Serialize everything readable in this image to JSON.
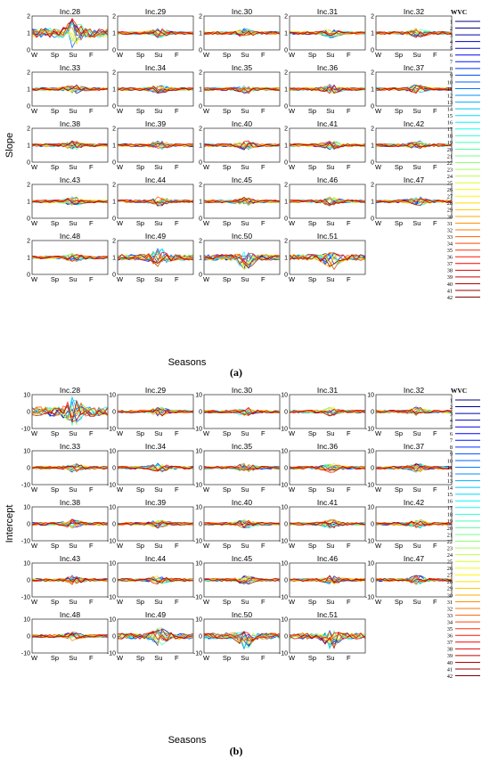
{
  "panels": [
    {
      "label": "(a)",
      "chart_data": {
        "type": "line",
        "ylabel": "Slope",
        "xlabel": "Seasons",
        "ylim": [
          0,
          2
        ],
        "yticks": [
          "0",
          "1",
          "2"
        ],
        "xticks": [
          "W",
          "Sp",
          "Su",
          "F"
        ],
        "subplots": [
          {
            "title": "Inc.28"
          },
          {
            "title": "Inc.29"
          },
          {
            "title": "Inc.30"
          },
          {
            "title": "Inc.31"
          },
          {
            "title": "Inc.32"
          },
          {
            "title": "Inc.33"
          },
          {
            "title": "Inc.34"
          },
          {
            "title": "Inc.35"
          },
          {
            "title": "Inc.36"
          },
          {
            "title": "Inc.37"
          },
          {
            "title": "Inc.38"
          },
          {
            "title": "Inc.39"
          },
          {
            "title": "Inc.40"
          },
          {
            "title": "Inc.41"
          },
          {
            "title": "Inc.42"
          },
          {
            "title": "Inc.43"
          },
          {
            "title": "Inc.44"
          },
          {
            "title": "Inc.45"
          },
          {
            "title": "Inc.46"
          },
          {
            "title": "Inc.47"
          },
          {
            "title": "Inc.48"
          },
          {
            "title": "Inc.49"
          },
          {
            "title": "Inc.50"
          },
          {
            "title": "Inc.51"
          }
        ],
        "baseline": 1,
        "legend": {
          "title": "WVC",
          "entries": [
            "1",
            "2",
            "3",
            "4",
            "5",
            "6",
            "7",
            "8",
            "9",
            "10",
            "11",
            "12",
            "13",
            "14",
            "15",
            "16",
            "17",
            "18",
            "19",
            "20",
            "21",
            "22",
            "23",
            "24",
            "25",
            "26",
            "27",
            "28",
            "29",
            "30",
            "31",
            "32",
            "33",
            "34",
            "35",
            "36",
            "37",
            "38",
            "39",
            "40",
            "41",
            "42"
          ]
        }
      }
    },
    {
      "label": "(b)",
      "chart_data": {
        "type": "line",
        "ylabel": "Intercept",
        "xlabel": "Seasons",
        "ylim": [
          -10,
          10
        ],
        "yticks": [
          "-10",
          "0",
          "10"
        ],
        "xticks": [
          "W",
          "Sp",
          "Su",
          "F"
        ],
        "subplots": [
          {
            "title": "Inc.28"
          },
          {
            "title": "Inc.29"
          },
          {
            "title": "Inc.30"
          },
          {
            "title": "Inc.31"
          },
          {
            "title": "Inc.32"
          },
          {
            "title": "Inc.33"
          },
          {
            "title": "Inc.34"
          },
          {
            "title": "Inc.35"
          },
          {
            "title": "Inc.36"
          },
          {
            "title": "Inc.37"
          },
          {
            "title": "Inc.38"
          },
          {
            "title": "Inc.39"
          },
          {
            "title": "Inc.40"
          },
          {
            "title": "Inc.41"
          },
          {
            "title": "Inc.42"
          },
          {
            "title": "Inc.43"
          },
          {
            "title": "Inc.44"
          },
          {
            "title": "Inc.45"
          },
          {
            "title": "Inc.46"
          },
          {
            "title": "Inc.47"
          },
          {
            "title": "Inc.48"
          },
          {
            "title": "Inc.49"
          },
          {
            "title": "Inc.50"
          },
          {
            "title": "Inc.51"
          }
        ],
        "baseline": 0,
        "legend": {
          "title": "WVC",
          "entries": [
            "1",
            "2",
            "3",
            "4",
            "5",
            "6",
            "7",
            "8",
            "9",
            "10",
            "11",
            "12",
            "13",
            "14",
            "15",
            "16",
            "17",
            "18",
            "19",
            "20",
            "21",
            "22",
            "23",
            "24",
            "25",
            "26",
            "27",
            "28",
            "29",
            "30",
            "31",
            "32",
            "33",
            "34",
            "35",
            "36",
            "37",
            "38",
            "39",
            "40",
            "41",
            "42"
          ]
        }
      }
    }
  ],
  "colormap": "jet"
}
